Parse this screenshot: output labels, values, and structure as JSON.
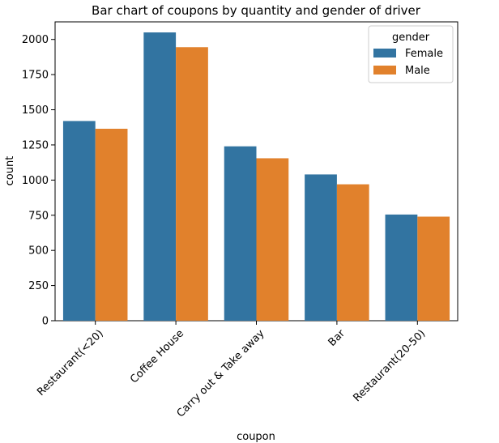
{
  "chart_data": {
    "type": "bar",
    "title": "Bar chart of coupons by quantity and gender of driver",
    "xlabel": "coupon",
    "ylabel": "count",
    "categories": [
      "Restaurant(<20)",
      "Coffee House",
      "Carry out & Take away",
      "Bar",
      "Restaurant(20-50)"
    ],
    "series": [
      {
        "name": "Female",
        "color": "#3274a1",
        "values": [
          1420,
          2050,
          1240,
          1040,
          755
        ]
      },
      {
        "name": "Male",
        "color": "#e1812c",
        "values": [
          1365,
          1945,
          1155,
          970,
          740
        ]
      }
    ],
    "ylim": [
      0,
      2125
    ],
    "yticks": [
      0,
      250,
      500,
      750,
      1000,
      1250,
      1500,
      1750,
      2000
    ],
    "legend": {
      "title": "gender",
      "placement": "top-right"
    },
    "grid": false
  }
}
